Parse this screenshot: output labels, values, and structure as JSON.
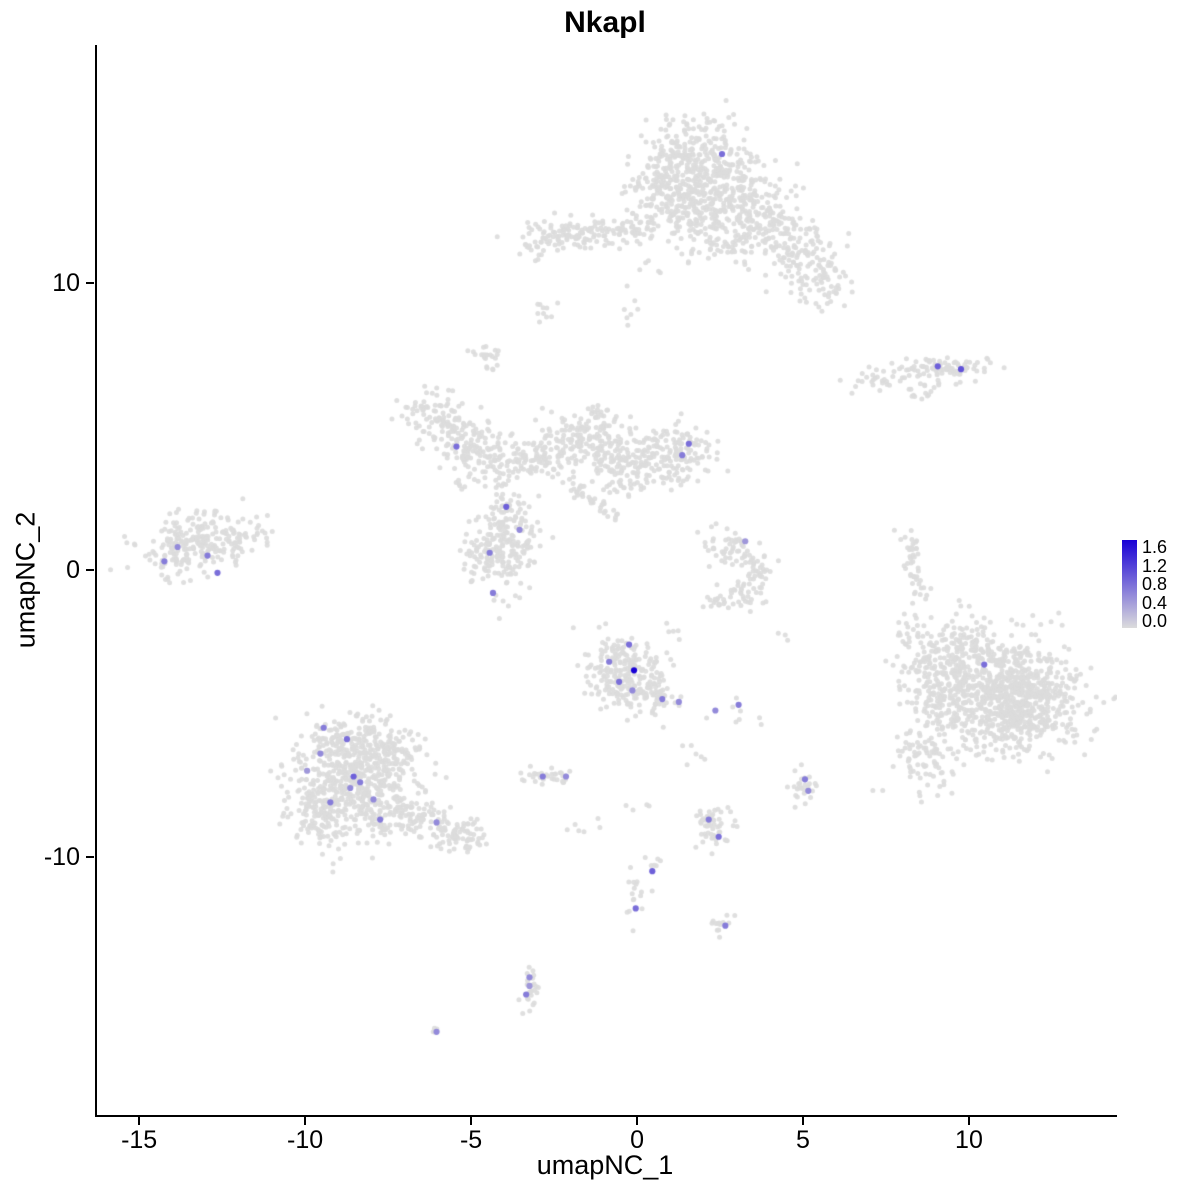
{
  "chart_data": {
    "type": "scatter",
    "title": "Nkapl",
    "xlabel": "umapNC_1",
    "ylabel": "umapNC_2",
    "xlim": [
      -16.33,
      14.4
    ],
    "ylim": [
      -19.0,
      18.3
    ],
    "x_ticks": [
      "-15",
      "-10",
      "-5",
      "0",
      "5",
      "10"
    ],
    "x_tick_values": [
      -15,
      -10,
      -5,
      0,
      5,
      10
    ],
    "y_ticks": [
      "10",
      "0",
      "-10"
    ],
    "y_tick_values": [
      10,
      0,
      -10
    ],
    "grid": false,
    "legend_position": "right",
    "legend": {
      "ticks": [
        "1.6",
        "1.2",
        "0.8",
        "0.4",
        "0.0"
      ],
      "vmin": 0.0,
      "vmax": 1.6,
      "low_color": "#DCDCDC",
      "high_color": "#1800D6"
    },
    "point_color_background": "#DCDCDC",
    "seed": 42,
    "background_clusters": [
      {
        "cx": 1.6,
        "cy": 14.2,
        "sx": 0.9,
        "sy": 0.75,
        "n": 330
      },
      {
        "cx": 2.6,
        "cy": 13.0,
        "sx": 0.8,
        "sy": 0.7,
        "n": 200
      },
      {
        "cx": 0.6,
        "cy": 13.0,
        "sx": 0.5,
        "sy": 0.7,
        "n": 90
      },
      {
        "cx": 3.9,
        "cy": 11.9,
        "sx": 0.7,
        "sy": 0.7,
        "n": 140
      },
      {
        "cx": 5.0,
        "cy": 10.8,
        "sx": 0.5,
        "sy": 0.6,
        "n": 90
      },
      {
        "cx": 5.7,
        "cy": 9.9,
        "sx": 0.35,
        "sy": 0.45,
        "n": 40
      },
      {
        "cx": 2.2,
        "cy": 11.6,
        "sx": 0.5,
        "sy": 0.5,
        "n": 60
      },
      {
        "cx": 1.5,
        "cy": 12.4,
        "sx": 0.4,
        "sy": 0.5,
        "n": 50
      },
      {
        "cx": -1.6,
        "cy": 11.7,
        "sx": 0.9,
        "sy": 0.3,
        "n": 110
      },
      {
        "cx": -2.9,
        "cy": 11.4,
        "sx": 0.4,
        "sy": 0.25,
        "n": 35
      },
      {
        "cx": -0.3,
        "cy": 12.0,
        "sx": 0.3,
        "sy": 0.25,
        "n": 25
      },
      {
        "cx": -2.8,
        "cy": 9.0,
        "sx": 0.15,
        "sy": 0.3,
        "n": 10
      },
      {
        "cx": -4.6,
        "cy": 7.5,
        "sx": 0.25,
        "sy": 0.3,
        "n": 22
      },
      {
        "cx": 9.2,
        "cy": 7.0,
        "sx": 0.65,
        "sy": 0.25,
        "n": 90
      },
      {
        "cx": 7.3,
        "cy": 6.6,
        "sx": 0.45,
        "sy": 0.2,
        "n": 28
      },
      {
        "cx": 8.5,
        "cy": 6.2,
        "sx": 0.25,
        "sy": 0.15,
        "n": 12
      },
      {
        "cx": -6.2,
        "cy": 5.4,
        "sx": 0.5,
        "sy": 0.5,
        "n": 90
      },
      {
        "cx": -5.1,
        "cy": 4.4,
        "sx": 0.5,
        "sy": 0.5,
        "n": 100
      },
      {
        "cx": -4.2,
        "cy": 3.7,
        "sx": 0.55,
        "sy": 0.4,
        "n": 70
      },
      {
        "cx": -3.2,
        "cy": 3.9,
        "sx": 0.4,
        "sy": 0.35,
        "n": 45
      },
      {
        "cx": -2.3,
        "cy": 4.3,
        "sx": 0.45,
        "sy": 0.45,
        "n": 70
      },
      {
        "cx": -1.4,
        "cy": 4.7,
        "sx": 0.5,
        "sy": 0.55,
        "n": 110
      },
      {
        "cx": -0.6,
        "cy": 3.9,
        "sx": 0.45,
        "sy": 0.5,
        "n": 80
      },
      {
        "cx": 0.3,
        "cy": 3.7,
        "sx": 0.4,
        "sy": 0.4,
        "n": 55
      },
      {
        "cx": 1.2,
        "cy": 4.1,
        "sx": 0.6,
        "sy": 0.5,
        "n": 120
      },
      {
        "cx": -1.5,
        "cy": 2.5,
        "sx": 0.55,
        "sy": 0.14,
        "n": 40,
        "rot": -40
      },
      {
        "cx": -0.6,
        "cy": 2.9,
        "sx": 0.3,
        "sy": 0.2,
        "n": 15
      },
      {
        "cx": -4.3,
        "cy": 0.7,
        "sx": 0.5,
        "sy": 0.75,
        "n": 190
      },
      {
        "cx": -3.9,
        "cy": 2.1,
        "sx": 0.3,
        "sy": 0.3,
        "n": 35
      },
      {
        "cx": -3.4,
        "cy": 1.1,
        "sx": 0.25,
        "sy": 0.4,
        "n": 25
      },
      {
        "cx": -13.4,
        "cy": 0.9,
        "sx": 0.85,
        "sy": 0.5,
        "n": 230,
        "rot": 15
      },
      {
        "cx": -11.8,
        "cy": 1.1,
        "sx": 0.4,
        "sy": 0.35,
        "n": 30
      },
      {
        "cx": 2.4,
        "cy": 0.8,
        "sx": 0.3,
        "sy": 0.3,
        "n": 25
      },
      {
        "cx": 3.1,
        "cy": 0.7,
        "sx": 0.35,
        "sy": 0.25,
        "n": 30
      },
      {
        "cx": 3.6,
        "cy": 0.0,
        "sx": 0.25,
        "sy": 0.35,
        "n": 30
      },
      {
        "cx": 3.2,
        "cy": -0.8,
        "sx": 0.35,
        "sy": 0.25,
        "n": 30
      },
      {
        "cx": 2.4,
        "cy": -1.0,
        "sx": 0.3,
        "sy": 0.2,
        "n": 20
      },
      {
        "cx": 8.2,
        "cy": 0.6,
        "sx": 0.15,
        "sy": 0.5,
        "n": 30
      },
      {
        "cx": 8.4,
        "cy": -0.6,
        "sx": 0.12,
        "sy": 0.25,
        "n": 12
      },
      {
        "cx": 10.8,
        "cy": -4.3,
        "sx": 1.15,
        "sy": 1.05,
        "n": 650
      },
      {
        "cx": 11.6,
        "cy": -4.6,
        "sx": 0.8,
        "sy": 0.8,
        "n": 300
      },
      {
        "cx": 9.2,
        "cy": -4.0,
        "sx": 0.6,
        "sy": 0.9,
        "n": 140
      },
      {
        "cx": 8.6,
        "cy": -6.6,
        "sx": 0.5,
        "sy": 0.5,
        "n": 80
      },
      {
        "cx": 9.8,
        "cy": -2.4,
        "sx": 0.5,
        "sy": 0.4,
        "n": 60
      },
      {
        "cx": 8.3,
        "cy": -2.6,
        "sx": 0.35,
        "sy": 0.8,
        "n": 50
      },
      {
        "cx": -0.4,
        "cy": -3.6,
        "sx": 0.55,
        "sy": 0.65,
        "n": 230
      },
      {
        "cx": 0.5,
        "cy": -4.4,
        "sx": 0.35,
        "sy": 0.3,
        "n": 45
      },
      {
        "cx": -8.6,
        "cy": -7.5,
        "sx": 1.0,
        "sy": 1.0,
        "n": 520
      },
      {
        "cx": -8.4,
        "cy": -6.0,
        "sx": 0.7,
        "sy": 0.5,
        "n": 150
      },
      {
        "cx": -9.6,
        "cy": -8.6,
        "sx": 0.5,
        "sy": 0.5,
        "n": 80
      },
      {
        "cx": -6.6,
        "cy": -8.8,
        "sx": 0.7,
        "sy": 0.4,
        "n": 110,
        "rot": -15
      },
      {
        "cx": -5.3,
        "cy": -9.4,
        "sx": 0.45,
        "sy": 0.3,
        "n": 50
      },
      {
        "cx": -7.2,
        "cy": -6.3,
        "sx": 0.4,
        "sy": 0.4,
        "n": 50
      },
      {
        "cx": -2.6,
        "cy": -7.2,
        "sx": 0.4,
        "sy": 0.13,
        "n": 32
      },
      {
        "cx": 2.2,
        "cy": -8.9,
        "sx": 0.33,
        "sy": 0.33,
        "n": 55
      },
      {
        "cx": 5.0,
        "cy": -7.5,
        "sx": 0.18,
        "sy": 0.3,
        "n": 26
      },
      {
        "cx": -0.1,
        "cy": -11.2,
        "sx": 0.18,
        "sy": 0.65,
        "n": 16
      },
      {
        "cx": 0.3,
        "cy": -10.3,
        "sx": 0.15,
        "sy": 0.2,
        "n": 6
      },
      {
        "cx": 2.5,
        "cy": -12.4,
        "sx": 0.18,
        "sy": 0.18,
        "n": 13
      },
      {
        "cx": -3.3,
        "cy": -14.5,
        "sx": 0.14,
        "sy": 0.45,
        "n": 26
      },
      {
        "cx": -6.1,
        "cy": -16.1,
        "sx": 0.1,
        "sy": 0.08,
        "n": 5
      },
      {
        "cx": 1.6,
        "cy": -6.4,
        "sx": 0.3,
        "sy": 0.3,
        "n": 6
      },
      {
        "cx": -1.3,
        "cy": -9.0,
        "sx": 0.4,
        "sy": 0.4,
        "n": 6
      },
      {
        "cx": 0.1,
        "cy": -8.3,
        "sx": 0.2,
        "sy": 0.2,
        "n": 4
      },
      {
        "cx": 2.9,
        "cy": -5.0,
        "sx": 0.5,
        "sy": 0.2,
        "n": 8
      },
      {
        "cx": 4.3,
        "cy": -2.2,
        "sx": 0.15,
        "sy": 0.15,
        "n": 3
      },
      {
        "cx": -0.2,
        "cy": 9.0,
        "sx": 0.2,
        "sy": 0.2,
        "n": 6
      },
      {
        "cx": 0.3,
        "cy": 10.6,
        "sx": 0.3,
        "sy": 0.3,
        "n": 6
      },
      {
        "cx": -5.4,
        "cy": 2.8,
        "sx": 0.2,
        "sy": 0.2,
        "n": 5
      },
      {
        "cx": 1.0,
        "cy": -2.0,
        "sx": 0.2,
        "sy": 0.4,
        "n": 5
      }
    ],
    "expressing_cells": [
      {
        "x": 2.5,
        "y": 14.5,
        "value": 0.8
      },
      {
        "x": 9.0,
        "y": 7.1,
        "value": 0.9
      },
      {
        "x": 9.7,
        "y": 7.0,
        "value": 1.0
      },
      {
        "x": -5.5,
        "y": 4.3,
        "value": 0.8
      },
      {
        "x": -4.0,
        "y": 2.2,
        "value": 0.9
      },
      {
        "x": -3.6,
        "y": 1.4,
        "value": 0.6
      },
      {
        "x": -4.5,
        "y": 0.6,
        "value": 0.7
      },
      {
        "x": -4.4,
        "y": -0.8,
        "value": 0.7
      },
      {
        "x": -13.9,
        "y": 0.8,
        "value": 0.6
      },
      {
        "x": -14.3,
        "y": 0.3,
        "value": 0.7
      },
      {
        "x": -13.0,
        "y": 0.5,
        "value": 0.7
      },
      {
        "x": -12.7,
        "y": -0.1,
        "value": 0.8
      },
      {
        "x": 1.5,
        "y": 4.4,
        "value": 0.8
      },
      {
        "x": 1.3,
        "y": 4.0,
        "value": 0.7
      },
      {
        "x": 3.2,
        "y": 1.0,
        "value": 0.5
      },
      {
        "x": -0.3,
        "y": -2.6,
        "value": 0.8
      },
      {
        "x": -0.9,
        "y": -3.2,
        "value": 0.7
      },
      {
        "x": -0.15,
        "y": -3.5,
        "value": 1.6
      },
      {
        "x": -0.6,
        "y": -3.9,
        "value": 0.8
      },
      {
        "x": -0.2,
        "y": -4.2,
        "value": 0.6
      },
      {
        "x": 0.7,
        "y": -4.5,
        "value": 0.7
      },
      {
        "x": 1.2,
        "y": -4.6,
        "value": 0.6
      },
      {
        "x": 2.3,
        "y": -4.9,
        "value": 0.6
      },
      {
        "x": 3.0,
        "y": -4.7,
        "value": 0.7
      },
      {
        "x": 10.4,
        "y": -3.3,
        "value": 0.8
      },
      {
        "x": -9.5,
        "y": -5.5,
        "value": 0.7
      },
      {
        "x": -8.8,
        "y": -5.9,
        "value": 0.8
      },
      {
        "x": -9.6,
        "y": -6.4,
        "value": 0.6
      },
      {
        "x": -8.6,
        "y": -7.2,
        "value": 0.9
      },
      {
        "x": -8.4,
        "y": -7.4,
        "value": 0.7
      },
      {
        "x": -8.7,
        "y": -7.6,
        "value": 0.6
      },
      {
        "x": -9.3,
        "y": -8.1,
        "value": 0.7
      },
      {
        "x": -10.0,
        "y": -7.0,
        "value": 0.5
      },
      {
        "x": -8.0,
        "y": -8.0,
        "value": 0.6
      },
      {
        "x": -7.8,
        "y": -8.7,
        "value": 0.7
      },
      {
        "x": -6.1,
        "y": -8.8,
        "value": 0.6
      },
      {
        "x": -2.9,
        "y": -7.2,
        "value": 0.7
      },
      {
        "x": -2.2,
        "y": -7.2,
        "value": 0.6
      },
      {
        "x": 5.0,
        "y": -7.3,
        "value": 0.7
      },
      {
        "x": 5.1,
        "y": -7.7,
        "value": 0.6
      },
      {
        "x": 2.1,
        "y": -8.7,
        "value": 0.7
      },
      {
        "x": 2.4,
        "y": -9.3,
        "value": 0.8
      },
      {
        "x": 0.4,
        "y": -10.5,
        "value": 0.9
      },
      {
        "x": -0.1,
        "y": -11.8,
        "value": 0.8
      },
      {
        "x": 2.6,
        "y": -12.4,
        "value": 0.7
      },
      {
        "x": -3.3,
        "y": -14.2,
        "value": 0.6
      },
      {
        "x": -3.3,
        "y": -14.5,
        "value": 0.5
      },
      {
        "x": -3.4,
        "y": -14.8,
        "value": 0.7
      },
      {
        "x": -6.1,
        "y": -16.1,
        "value": 0.6
      }
    ]
  }
}
